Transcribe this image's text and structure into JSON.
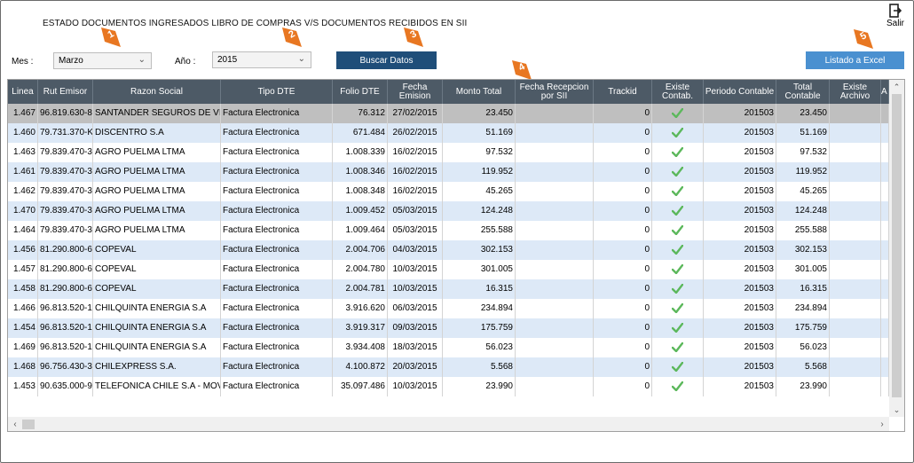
{
  "title": "ESTADO DOCUMENTOS INGRESADOS LIBRO DE COMPRAS V/S DOCUMENTOS RECIBIDOS EN SII",
  "salir_label": "Salir",
  "filters": {
    "mes_label": "Mes :",
    "mes_value": "Marzo",
    "anio_label": "Año :",
    "anio_value": "2015"
  },
  "buttons": {
    "buscar": "Buscar Datos",
    "excel": "Listado a Excel"
  },
  "markers": [
    "1",
    "2",
    "3",
    "4",
    "5"
  ],
  "colors": {
    "header_bg": "#4d5a66",
    "row_alt": "#dde9f7",
    "row_selected": "#bfbfbf",
    "buscar_bg": "#1f4e79",
    "excel_bg": "#4a90d0",
    "marker": "#e87722",
    "check": "#5cb85c"
  },
  "table": {
    "headers": [
      "Linea",
      "Rut Emisor",
      "Razon Social",
      "Tipo DTE",
      "Folio DTE",
      "Fecha Emision",
      "Monto Total",
      "Fecha Recepcion por SII",
      "Trackid",
      "Existe Contab.",
      "Periodo Contable",
      "Total Contable",
      "Existe Archivo",
      "A"
    ],
    "rows": [
      {
        "linea": "1.467",
        "rut": "96.819.630-8",
        "razon": "SANTANDER SEGUROS DE VIDA S.A.",
        "tipo": "Factura Electronica",
        "folio": "76.312",
        "fecha": "27/02/2015",
        "monto": "23.450",
        "recepcion": "",
        "trackid": "0",
        "periodo": "201503",
        "total": "23.450"
      },
      {
        "linea": "1.460",
        "rut": "79.731.370-K",
        "razon": "DISCENTRO S.A",
        "tipo": "Factura Electronica",
        "folio": "671.484",
        "fecha": "26/02/2015",
        "monto": "51.169",
        "recepcion": "",
        "trackid": "0",
        "periodo": "201503",
        "total": "51.169"
      },
      {
        "linea": "1.463",
        "rut": "79.839.470-3",
        "razon": "AGRO PUELMA LTMA",
        "tipo": "Factura Electronica",
        "folio": "1.008.339",
        "fecha": "16/02/2015",
        "monto": "97.532",
        "recepcion": "",
        "trackid": "0",
        "periodo": "201503",
        "total": "97.532"
      },
      {
        "linea": "1.461",
        "rut": "79.839.470-3",
        "razon": "AGRO PUELMA LTMA",
        "tipo": "Factura Electronica",
        "folio": "1.008.346",
        "fecha": "16/02/2015",
        "monto": "119.952",
        "recepcion": "",
        "trackid": "0",
        "periodo": "201503",
        "total": "119.952"
      },
      {
        "linea": "1.462",
        "rut": "79.839.470-3",
        "razon": "AGRO PUELMA LTMA",
        "tipo": "Factura Electronica",
        "folio": "1.008.348",
        "fecha": "16/02/2015",
        "monto": "45.265",
        "recepcion": "",
        "trackid": "0",
        "periodo": "201503",
        "total": "45.265"
      },
      {
        "linea": "1.470",
        "rut": "79.839.470-3",
        "razon": "AGRO PUELMA LTMA",
        "tipo": "Factura Electronica",
        "folio": "1.009.452",
        "fecha": "05/03/2015",
        "monto": "124.248",
        "recepcion": "",
        "trackid": "0",
        "periodo": "201503",
        "total": "124.248"
      },
      {
        "linea": "1.464",
        "rut": "79.839.470-3",
        "razon": "AGRO PUELMA LTMA",
        "tipo": "Factura Electronica",
        "folio": "1.009.464",
        "fecha": "05/03/2015",
        "monto": "255.588",
        "recepcion": "",
        "trackid": "0",
        "periodo": "201503",
        "total": "255.588"
      },
      {
        "linea": "1.456",
        "rut": "81.290.800-6",
        "razon": "COPEVAL",
        "tipo": "Factura Electronica",
        "folio": "2.004.706",
        "fecha": "04/03/2015",
        "monto": "302.153",
        "recepcion": "",
        "trackid": "0",
        "periodo": "201503",
        "total": "302.153"
      },
      {
        "linea": "1.457",
        "rut": "81.290.800-6",
        "razon": "COPEVAL",
        "tipo": "Factura Electronica",
        "folio": "2.004.780",
        "fecha": "10/03/2015",
        "monto": "301.005",
        "recepcion": "",
        "trackid": "0",
        "periodo": "201503",
        "total": "301.005"
      },
      {
        "linea": "1.458",
        "rut": "81.290.800-6",
        "razon": "COPEVAL",
        "tipo": "Factura Electronica",
        "folio": "2.004.781",
        "fecha": "10/03/2015",
        "monto": "16.315",
        "recepcion": "",
        "trackid": "0",
        "periodo": "201503",
        "total": "16.315"
      },
      {
        "linea": "1.466",
        "rut": "96.813.520-1",
        "razon": "CHILQUINTA ENERGIA S.A",
        "tipo": "Factura Electronica",
        "folio": "3.916.620",
        "fecha": "06/03/2015",
        "monto": "234.894",
        "recepcion": "",
        "trackid": "0",
        "periodo": "201503",
        "total": "234.894"
      },
      {
        "linea": "1.454",
        "rut": "96.813.520-1",
        "razon": "CHILQUINTA ENERGIA S.A",
        "tipo": "Factura Electronica",
        "folio": "3.919.317",
        "fecha": "09/03/2015",
        "monto": "175.759",
        "recepcion": "",
        "trackid": "0",
        "periodo": "201503",
        "total": "175.759"
      },
      {
        "linea": "1.469",
        "rut": "96.813.520-1",
        "razon": "CHILQUINTA ENERGIA S.A",
        "tipo": "Factura Electronica",
        "folio": "3.934.408",
        "fecha": "18/03/2015",
        "monto": "56.023",
        "recepcion": "",
        "trackid": "0",
        "periodo": "201503",
        "total": "56.023"
      },
      {
        "linea": "1.468",
        "rut": "96.756.430-3",
        "razon": "CHILEXPRESS S.A.",
        "tipo": "Factura Electronica",
        "folio": "4.100.872",
        "fecha": "20/03/2015",
        "monto": "5.568",
        "recepcion": "",
        "trackid": "0",
        "periodo": "201503",
        "total": "5.568"
      },
      {
        "linea": "1.453",
        "rut": "90.635.000-9",
        "razon": "TELEFONICA CHILE S.A - MOVISTAR",
        "tipo": "Factura Electronica",
        "folio": "35.097.486",
        "fecha": "10/03/2015",
        "monto": "23.990",
        "recepcion": "",
        "trackid": "0",
        "periodo": "201503",
        "total": "23.990"
      }
    ]
  }
}
